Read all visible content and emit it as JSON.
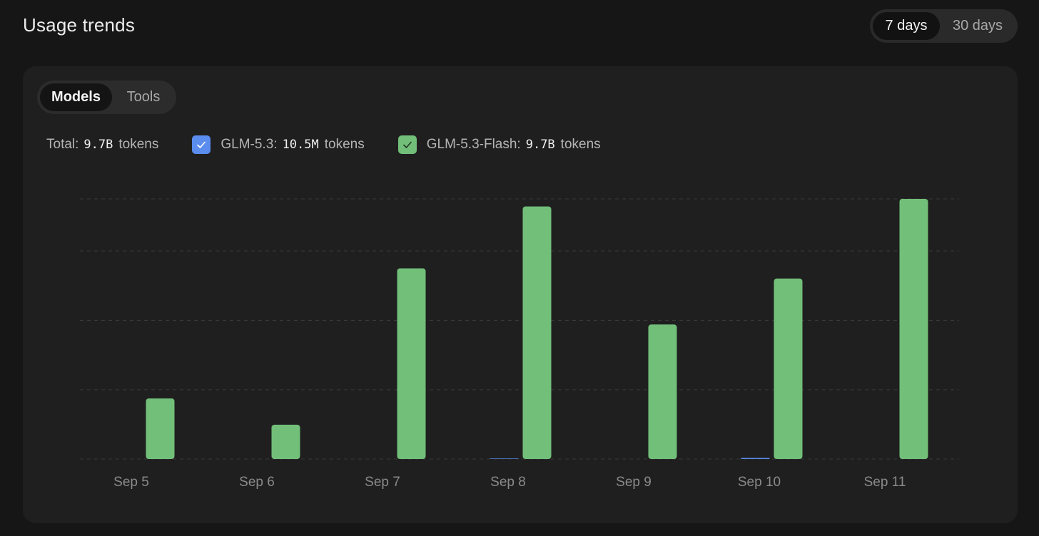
{
  "header": {
    "title": "Usage trends",
    "range_options": [
      {
        "label": "7 days",
        "active": true
      },
      {
        "label": "30 days",
        "active": false
      }
    ]
  },
  "tabs": [
    {
      "label": "Models",
      "active": true
    },
    {
      "label": "Tools",
      "active": false
    }
  ],
  "legend": {
    "total_label": "Total:",
    "total_value": "9.7B",
    "total_unit": "tokens",
    "series": [
      {
        "name": "GLM-5.3:",
        "value": "10.5M",
        "unit": "tokens",
        "checked": true,
        "color": "#5b8def",
        "icon": "check-icon"
      },
      {
        "name": "GLM-5.3-Flash:",
        "value": "9.7B",
        "unit": "tokens",
        "checked": true,
        "color": "#72bf7a",
        "icon": "check-icon"
      }
    ]
  },
  "colors": {
    "background": "#161616",
    "card": "#1f1f1f",
    "glm_blue": "#5b8def",
    "glm_flash_green": "#72bf7a",
    "grid": "#3a3a3a"
  },
  "chart_data": {
    "type": "bar",
    "categories": [
      "Sep 5",
      "Sep 6",
      "Sep 7",
      "Sep 8",
      "Sep 9",
      "Sep 10",
      "Sep 11"
    ],
    "series": [
      {
        "name": "GLM-5.3",
        "color": "#5b8def",
        "values": [
          0,
          0,
          0,
          0.002,
          0,
          0.004,
          0
        ]
      },
      {
        "name": "GLM-5.3-Flash",
        "color": "#72bf7a",
        "values": [
          0.233,
          0.132,
          0.733,
          0.971,
          0.517,
          0.694,
          1.0
        ]
      }
    ],
    "ylim": [
      0,
      1.0
    ],
    "grid": true,
    "ytick_values": [
      0.266,
      0.533,
      0.8,
      1.0
    ],
    "xlabel": "",
    "ylabel": ""
  }
}
